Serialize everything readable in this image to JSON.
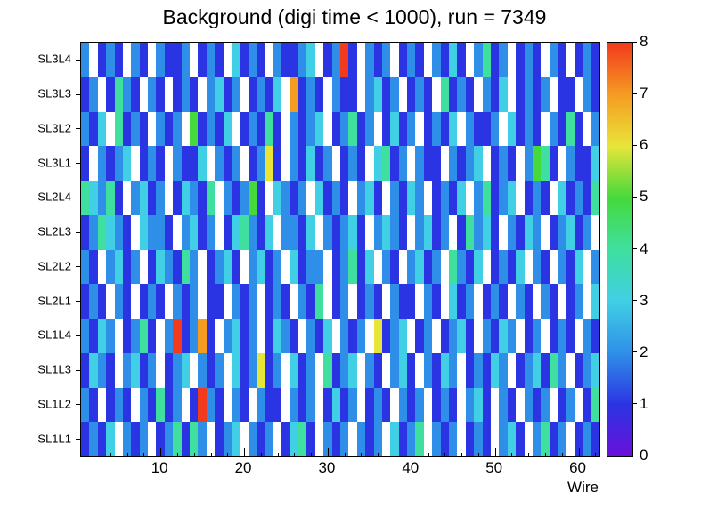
{
  "chart_data": {
    "type": "heatmap",
    "title": "Background (digi time < 1000), run = 7349",
    "xlabel": "Wire",
    "x_min": 0.5,
    "x_max": 62.5,
    "x_ticks": [
      10,
      20,
      30,
      40,
      50,
      60
    ],
    "x_minor_tick_step": 2,
    "z_min": 0,
    "z_max": 8,
    "z_ticks": [
      0,
      1,
      2,
      3,
      4,
      5,
      6,
      7,
      8
    ],
    "rows_top_to_bottom": [
      "SL3L4",
      "SL3L3",
      "SL3L2",
      "SL3L1",
      "SL2L4",
      "SL2L3",
      "SL2L2",
      "SL2L1",
      "SL1L4",
      "SL1L3",
      "SL1L2",
      "SL1L1"
    ],
    "palette": [
      "#ffffff",
      "#2b34e3",
      "#2f8fe8",
      "#40cfe5",
      "#3fdf9f",
      "#45d93c",
      "#e8e539",
      "#f59b22",
      "#f23a1d"
    ],
    "colorbar_colors": [
      "#6a10d9",
      "#2b34e3",
      "#2f8fe8",
      "#40cfe5",
      "#3fdf9f",
      "#45d93c",
      "#e8e539",
      "#f59b22",
      "#f23a1d"
    ],
    "values": [
      [
        2,
        0,
        1,
        2,
        1,
        0,
        2,
        1,
        0,
        2,
        1,
        1,
        2,
        0,
        1,
        2,
        1,
        0,
        3,
        1,
        2,
        1,
        0,
        2,
        1,
        1,
        2,
        3,
        0,
        1,
        2,
        8,
        1,
        0,
        2,
        1,
        2,
        0,
        1,
        2,
        1,
        0,
        2,
        1,
        3,
        1,
        0,
        2,
        4,
        1,
        2,
        0,
        1,
        2,
        1,
        0,
        2,
        1,
        0,
        1,
        2,
        1
      ],
      [
        1,
        2,
        0,
        1,
        4,
        2,
        1,
        0,
        2,
        1,
        0,
        1,
        2,
        1,
        0,
        2,
        3,
        1,
        2,
        0,
        1,
        2,
        1,
        3,
        0,
        7,
        1,
        2,
        1,
        0,
        2,
        1,
        1,
        0,
        2,
        3,
        1,
        2,
        0,
        1,
        2,
        1,
        0,
        4,
        1,
        2,
        1,
        0,
        2,
        1,
        3,
        0,
        1,
        2,
        1,
        2,
        0,
        1,
        1,
        0,
        2,
        1
      ],
      [
        2,
        1,
        3,
        0,
        4,
        1,
        2,
        1,
        0,
        2,
        1,
        2,
        0,
        5,
        1,
        2,
        1,
        3,
        0,
        1,
        2,
        1,
        4,
        1,
        0,
        2,
        1,
        2,
        3,
        0,
        1,
        2,
        4,
        1,
        2,
        0,
        1,
        3,
        1,
        2,
        0,
        1,
        2,
        1,
        3,
        0,
        2,
        1,
        1,
        2,
        0,
        3,
        1,
        2,
        1,
        0,
        2,
        1,
        4,
        1,
        0,
        2
      ],
      [
        1,
        0,
        2,
        1,
        2,
        3,
        0,
        1,
        2,
        1,
        0,
        2,
        1,
        1,
        3,
        0,
        2,
        1,
        2,
        0,
        1,
        2,
        6,
        1,
        0,
        2,
        1,
        3,
        1,
        2,
        0,
        1,
        2,
        1,
        0,
        3,
        4,
        1,
        2,
        0,
        2,
        1,
        1,
        0,
        2,
        1,
        2,
        3,
        0,
        1,
        2,
        1,
        0,
        2,
        5,
        4,
        1,
        0,
        2,
        1,
        1,
        3
      ],
      [
        4,
        3,
        2,
        4,
        1,
        0,
        2,
        3,
        1,
        2,
        0,
        1,
        3,
        2,
        1,
        4,
        0,
        2,
        1,
        2,
        5,
        1,
        0,
        3,
        2,
        1,
        2,
        0,
        3,
        1,
        2,
        1,
        0,
        2,
        3,
        1,
        0,
        2,
        1,
        3,
        2,
        0,
        1,
        2,
        1,
        3,
        0,
        2,
        4,
        1,
        2,
        3,
        0,
        1,
        2,
        1,
        0,
        3,
        1,
        2,
        1,
        4
      ],
      [
        1,
        2,
        4,
        3,
        2,
        1,
        0,
        3,
        2,
        2,
        1,
        0,
        2,
        3,
        1,
        2,
        0,
        1,
        3,
        4,
        2,
        1,
        3,
        0,
        2,
        2,
        1,
        3,
        0,
        2,
        1,
        2,
        3,
        1,
        0,
        2,
        3,
        2,
        1,
        0,
        2,
        3,
        1,
        2,
        0,
        1,
        4,
        2,
        3,
        1,
        0,
        2,
        1,
        3,
        2,
        0,
        1,
        2,
        3,
        1,
        2,
        0
      ],
      [
        2,
        1,
        0,
        2,
        3,
        1,
        2,
        0,
        1,
        3,
        2,
        1,
        4,
        2,
        0,
        1,
        2,
        3,
        1,
        0,
        2,
        3,
        1,
        2,
        0,
        3,
        1,
        2,
        2,
        0,
        1,
        2,
        4,
        1,
        3,
        0,
        2,
        1,
        0,
        2,
        3,
        1,
        2,
        0,
        4,
        2,
        1,
        3,
        0,
        1,
        2,
        1,
        3,
        0,
        2,
        1,
        0,
        2,
        1,
        3,
        0,
        2
      ],
      [
        1,
        2,
        1,
        0,
        2,
        1,
        0,
        1,
        2,
        1,
        0,
        2,
        1,
        2,
        0,
        1,
        1,
        0,
        2,
        1,
        2,
        0,
        1,
        2,
        1,
        0,
        2,
        1,
        4,
        0,
        1,
        2,
        0,
        1,
        2,
        1,
        0,
        2,
        1,
        1,
        0,
        2,
        1,
        0,
        3,
        1,
        2,
        0,
        1,
        2,
        1,
        0,
        2,
        1,
        0,
        2,
        1,
        0,
        1,
        2,
        0,
        3
      ],
      [
        2,
        1,
        3,
        2,
        0,
        1,
        2,
        4,
        1,
        0,
        2,
        8,
        1,
        2,
        7,
        1,
        0,
        2,
        3,
        1,
        2,
        0,
        1,
        3,
        2,
        1,
        0,
        2,
        1,
        3,
        0,
        2,
        1,
        2,
        0,
        6,
        1,
        2,
        3,
        0,
        1,
        2,
        0,
        1,
        2,
        3,
        1,
        0,
        2,
        1,
        3,
        2,
        0,
        1,
        2,
        0,
        1,
        2,
        1,
        0,
        2,
        1
      ],
      [
        1,
        3,
        2,
        1,
        0,
        2,
        3,
        1,
        2,
        0,
        1,
        2,
        3,
        0,
        2,
        1,
        2,
        0,
        3,
        1,
        2,
        6,
        1,
        2,
        0,
        3,
        1,
        2,
        0,
        4,
        1,
        2,
        3,
        0,
        2,
        1,
        0,
        2,
        3,
        1,
        0,
        2,
        1,
        3,
        2,
        0,
        1,
        2,
        1,
        3,
        2,
        0,
        1,
        2,
        3,
        1,
        4,
        2,
        0,
        1,
        2,
        3
      ],
      [
        2,
        1,
        0,
        1,
        2,
        1,
        0,
        2,
        1,
        4,
        1,
        2,
        0,
        1,
        8,
        2,
        1,
        0,
        2,
        1,
        0,
        2,
        1,
        1,
        0,
        2,
        1,
        2,
        0,
        1,
        3,
        1,
        2,
        0,
        1,
        2,
        1,
        0,
        2,
        1,
        2,
        0,
        1,
        2,
        1,
        0,
        2,
        3,
        1,
        0,
        2,
        1,
        0,
        2,
        1,
        2,
        0,
        1,
        2,
        0,
        1,
        4
      ],
      [
        1,
        2,
        1,
        3,
        0,
        2,
        1,
        2,
        0,
        1,
        2,
        4,
        1,
        4,
        2,
        0,
        1,
        2,
        3,
        0,
        2,
        1,
        2,
        0,
        1,
        3,
        4,
        1,
        0,
        2,
        1,
        2,
        0,
        2,
        1,
        2,
        0,
        3,
        1,
        2,
        4,
        0,
        2,
        1,
        2,
        0,
        1,
        2,
        1,
        0,
        2,
        3,
        1,
        0,
        2,
        4,
        1,
        2,
        0,
        1,
        2,
        1
      ]
    ]
  }
}
